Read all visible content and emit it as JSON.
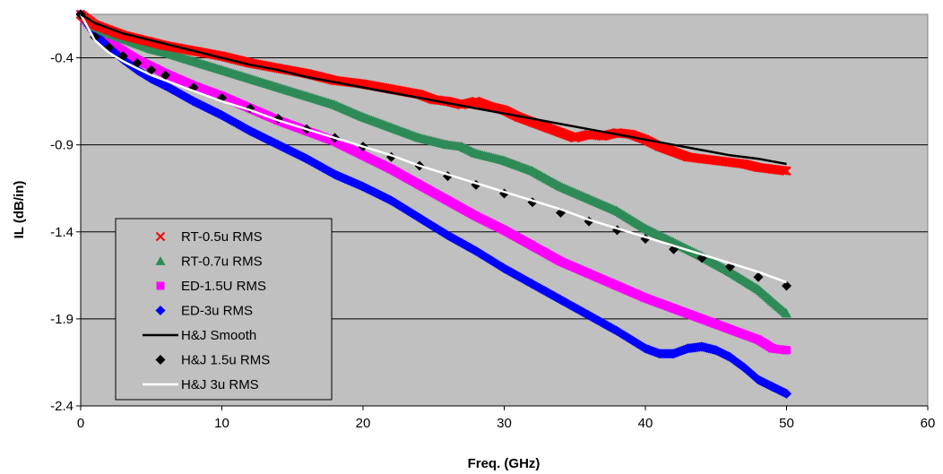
{
  "chart_data": {
    "type": "scatter",
    "title": "",
    "xlabel": "Freq. (GHz)",
    "ylabel": "IL (dB/in)",
    "xlim": [
      0,
      60
    ],
    "ylim": [
      -2.4,
      -0.15
    ],
    "x_ticks": [
      0,
      10,
      20,
      30,
      40,
      50,
      60
    ],
    "y_ticks": [
      -0.4,
      -0.9,
      -1.4,
      -1.9,
      -2.4
    ],
    "x_tick_labels": [
      "0",
      "10",
      "20",
      "30",
      "40",
      "50",
      "60"
    ],
    "y_tick_labels": [
      "-0.4",
      "-0.9",
      "-1.4",
      "-1.9",
      "-2.4"
    ],
    "grid": "horizontal",
    "plot_background": "#C0C0C0",
    "legend_position": "lower-left",
    "series": [
      {
        "name": "RT-0.5u RMS",
        "marker": "x",
        "color": "#FF0000",
        "x": [
          0,
          1,
          2,
          3,
          4,
          5,
          6,
          8,
          10,
          12,
          14,
          16,
          18,
          20,
          22,
          24,
          25,
          26,
          27,
          28,
          29,
          30,
          31,
          32,
          33,
          34,
          35,
          36,
          37,
          38,
          39,
          40,
          41,
          42,
          43,
          44,
          45,
          46,
          47,
          48,
          49,
          50
        ],
        "y": [
          -0.15,
          -0.21,
          -0.24,
          -0.27,
          -0.29,
          -0.31,
          -0.33,
          -0.36,
          -0.39,
          -0.43,
          -0.46,
          -0.49,
          -0.53,
          -0.55,
          -0.58,
          -0.61,
          -0.64,
          -0.65,
          -0.67,
          -0.65,
          -0.68,
          -0.7,
          -0.74,
          -0.77,
          -0.8,
          -0.83,
          -0.86,
          -0.84,
          -0.85,
          -0.83,
          -0.84,
          -0.87,
          -0.91,
          -0.94,
          -0.97,
          -0.98,
          -0.99,
          -1.0,
          -1.01,
          -1.03,
          -1.04,
          -1.05
        ]
      },
      {
        "name": "RT-0.7u RMS",
        "marker": "triangle",
        "color": "#2E8B57",
        "x": [
          0,
          1,
          2,
          3,
          4,
          5,
          6,
          8,
          10,
          12,
          14,
          16,
          18,
          20,
          22,
          24,
          26,
          27,
          28,
          29,
          30,
          32,
          34,
          36,
          38,
          40,
          42,
          44,
          46,
          48,
          50
        ],
        "y": [
          -0.15,
          -0.22,
          -0.26,
          -0.29,
          -0.32,
          -0.35,
          -0.37,
          -0.42,
          -0.47,
          -0.52,
          -0.57,
          -0.62,
          -0.67,
          -0.74,
          -0.8,
          -0.86,
          -0.9,
          -0.91,
          -0.95,
          -0.97,
          -0.99,
          -1.05,
          -1.14,
          -1.21,
          -1.28,
          -1.38,
          -1.46,
          -1.54,
          -1.63,
          -1.73,
          -1.87
        ]
      },
      {
        "name": "ED-1.5U RMS",
        "marker": "square",
        "color": "#FF00FF",
        "x": [
          0,
          1,
          2,
          3,
          4,
          5,
          6,
          8,
          10,
          12,
          14,
          16,
          18,
          20,
          22,
          24,
          26,
          28,
          30,
          32,
          34,
          36,
          38,
          40,
          42,
          44,
          46,
          48,
          49,
          50
        ],
        "y": [
          -0.15,
          -0.25,
          -0.31,
          -0.36,
          -0.41,
          -0.45,
          -0.49,
          -0.56,
          -0.62,
          -0.69,
          -0.76,
          -0.82,
          -0.88,
          -0.96,
          -1.04,
          -1.13,
          -1.22,
          -1.31,
          -1.39,
          -1.48,
          -1.57,
          -1.64,
          -1.71,
          -1.78,
          -1.84,
          -1.9,
          -1.96,
          -2.02,
          -2.07,
          -2.08
        ]
      },
      {
        "name": "ED-3u RMS",
        "marker": "diamond",
        "color": "#0000FF",
        "x": [
          0,
          1,
          2,
          3,
          4,
          5,
          6,
          8,
          10,
          12,
          14,
          16,
          18,
          20,
          22,
          24,
          26,
          28,
          30,
          32,
          34,
          36,
          38,
          40,
          41,
          42,
          43,
          44,
          45,
          46,
          47,
          48,
          49,
          50
        ],
        "y": [
          -0.15,
          -0.26,
          -0.34,
          -0.41,
          -0.47,
          -0.52,
          -0.56,
          -0.65,
          -0.73,
          -0.82,
          -0.9,
          -0.98,
          -1.07,
          -1.14,
          -1.22,
          -1.32,
          -1.42,
          -1.51,
          -1.61,
          -1.7,
          -1.79,
          -1.88,
          -1.97,
          -2.07,
          -2.1,
          -2.1,
          -2.07,
          -2.06,
          -2.08,
          -2.12,
          -2.18,
          -2.25,
          -2.29,
          -2.33
        ]
      },
      {
        "name": "H&J Smooth",
        "marker": "line",
        "color": "#000000",
        "x": [
          0,
          1,
          2,
          3,
          4,
          5,
          6,
          8,
          10,
          12,
          14,
          16,
          18,
          20,
          22,
          24,
          26,
          28,
          30,
          32,
          34,
          36,
          38,
          40,
          42,
          44,
          46,
          48,
          50
        ],
        "y": [
          -0.15,
          -0.2,
          -0.23,
          -0.26,
          -0.28,
          -0.3,
          -0.32,
          -0.36,
          -0.4,
          -0.44,
          -0.47,
          -0.51,
          -0.54,
          -0.57,
          -0.6,
          -0.63,
          -0.66,
          -0.69,
          -0.72,
          -0.75,
          -0.78,
          -0.81,
          -0.84,
          -0.87,
          -0.9,
          -0.93,
          -0.96,
          -0.98,
          -1.01
        ]
      },
      {
        "name": "H&J 1.5u RMS",
        "marker": "diamond",
        "color": "#000000",
        "x": [
          0,
          1,
          2,
          3,
          4,
          5,
          6,
          8,
          10,
          12,
          14,
          16,
          18,
          20,
          22,
          24,
          26,
          28,
          30,
          32,
          34,
          36,
          38,
          40,
          42,
          44,
          46,
          48,
          50
        ],
        "y": [
          -0.15,
          -0.28,
          -0.34,
          -0.39,
          -0.43,
          -0.47,
          -0.5,
          -0.57,
          -0.63,
          -0.69,
          -0.75,
          -0.81,
          -0.86,
          -0.91,
          -0.97,
          -1.02,
          -1.08,
          -1.13,
          -1.18,
          -1.23,
          -1.29,
          -1.34,
          -1.39,
          -1.44,
          -1.5,
          -1.55,
          -1.6,
          -1.66,
          -1.71
        ]
      },
      {
        "name": "H&J 3u RMS",
        "marker": "line",
        "color": "#FFFFFF",
        "x": [
          0,
          1,
          2,
          3,
          4,
          5,
          6,
          8,
          10,
          12,
          14,
          16,
          18,
          20,
          22,
          24,
          26,
          28,
          30,
          32,
          34,
          36,
          38,
          40,
          42,
          44,
          46,
          48,
          50
        ],
        "y": [
          -0.15,
          -0.3,
          -0.37,
          -0.42,
          -0.46,
          -0.5,
          -0.53,
          -0.59,
          -0.65,
          -0.7,
          -0.76,
          -0.81,
          -0.86,
          -0.91,
          -0.96,
          -1.02,
          -1.07,
          -1.12,
          -1.17,
          -1.22,
          -1.27,
          -1.33,
          -1.38,
          -1.43,
          -1.48,
          -1.53,
          -1.58,
          -1.63,
          -1.69
        ]
      }
    ]
  }
}
